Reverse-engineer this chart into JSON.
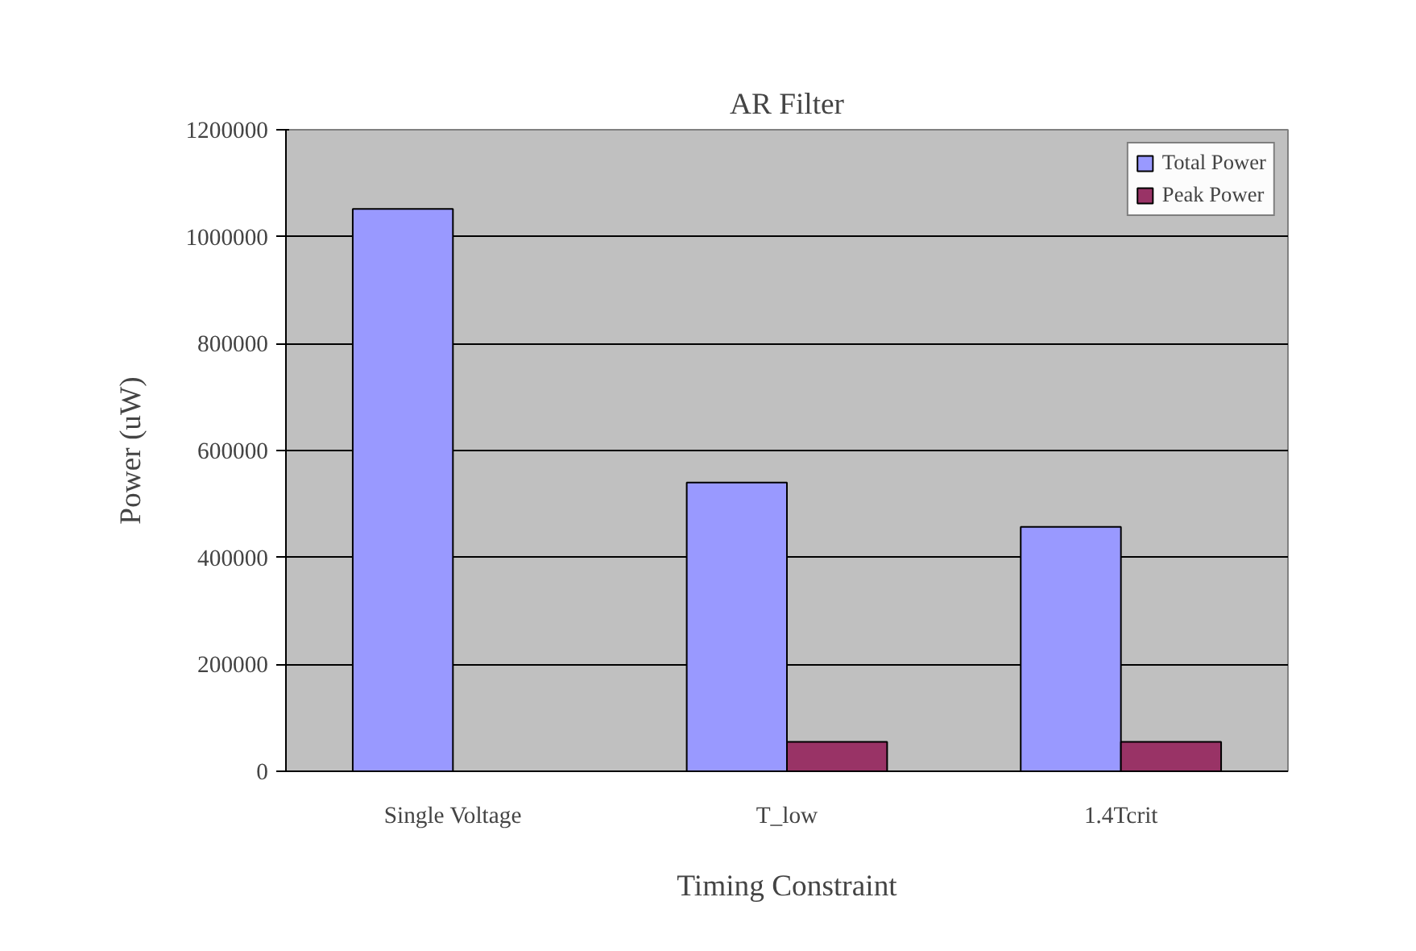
{
  "chart_data": {
    "type": "bar",
    "title": "AR Filter",
    "xlabel": "Timing Constraint",
    "ylabel": "Power (uW)",
    "categories": [
      "Single Voltage",
      "T_low",
      "1.4Tcrit"
    ],
    "series": [
      {
        "name": "Total Power",
        "color": "#9999ff",
        "values": [
          1052000,
          540000,
          457000
        ]
      },
      {
        "name": "Peak Power",
        "color": "#993366",
        "values": [
          null,
          55000,
          55000
        ]
      }
    ],
    "ylim": [
      0,
      1200000
    ],
    "yticks": [
      0,
      200000,
      400000,
      600000,
      800000,
      1000000,
      1200000
    ],
    "grid": "y",
    "legend": "top right"
  }
}
